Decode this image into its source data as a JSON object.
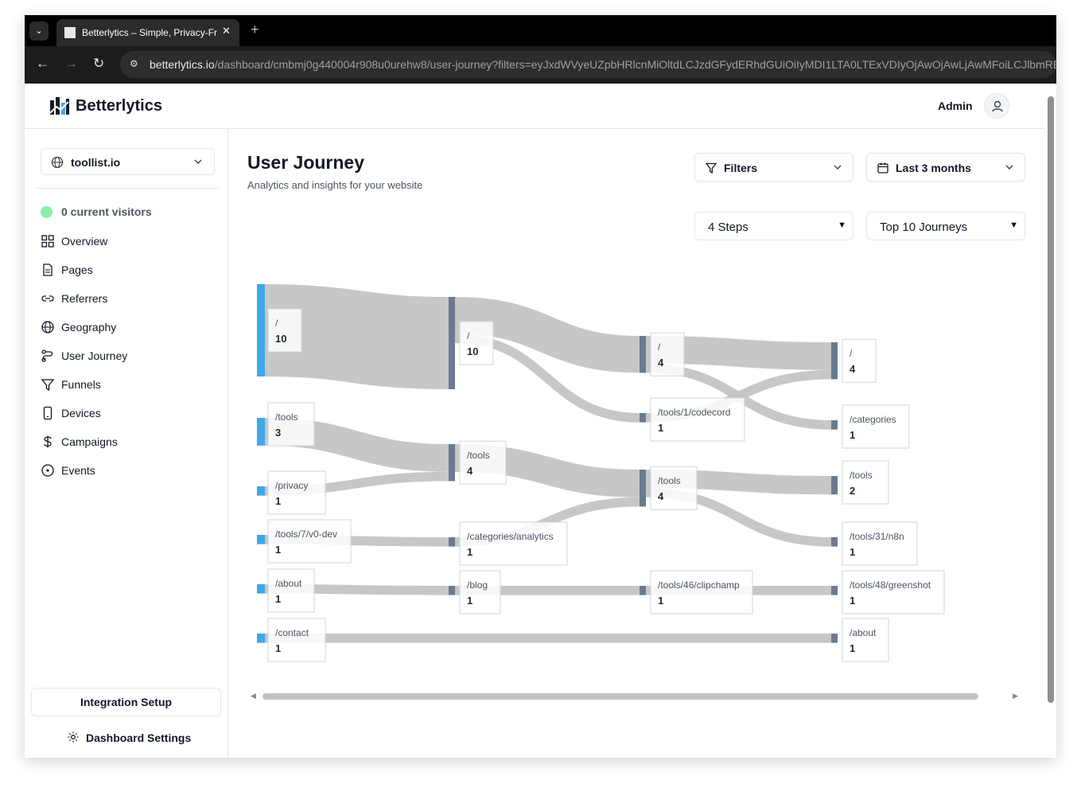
{
  "browser": {
    "tab_title": "Betterlytics – Simple, Privacy-Fr",
    "url_host": "betterlytics.io",
    "url_path": "/dashboard/cmbmj0g440004r908u0urehw8/user-journey?filters=eyJxdWVyeUZpbHRlcnMiOltdLCJzdGFydERhdGUiOiIyMDI1LTA0LTExVDIyOjAwOjAwLjAwMFoiLCJlbmREYXR"
  },
  "header": {
    "brand": "Betterlytics",
    "admin_label": "Admin"
  },
  "sidebar": {
    "site": "toollist.io",
    "current_visitors": "0 current visitors",
    "items": [
      {
        "label": "Overview",
        "icon": "grid-icon"
      },
      {
        "label": "Pages",
        "icon": "document-icon"
      },
      {
        "label": "Referrers",
        "icon": "link-icon"
      },
      {
        "label": "Geography",
        "icon": "globe-icon"
      },
      {
        "label": "User Journey",
        "icon": "route-icon"
      },
      {
        "label": "Funnels",
        "icon": "funnel-icon"
      },
      {
        "label": "Devices",
        "icon": "smartphone-icon"
      },
      {
        "label": "Campaigns",
        "icon": "dollar-icon"
      },
      {
        "label": "Events",
        "icon": "target-icon"
      }
    ],
    "integration_setup": "Integration Setup",
    "dashboard_settings": "Dashboard Settings"
  },
  "main": {
    "title": "User Journey",
    "subtitle": "Analytics and insights for your website",
    "filters_label": "Filters",
    "date_range": "Last 3 months",
    "steps": "4 Steps",
    "journeys": "Top 10 Journeys"
  },
  "colors": {
    "accent": "#3ea8e5",
    "node": "#6b7a90",
    "link": "#c4c4c4"
  },
  "chart_data": {
    "type": "sankey",
    "nodes": [
      {
        "id": "s0_home",
        "step": 0,
        "name": "/",
        "value": 10
      },
      {
        "id": "s0_tools",
        "step": 0,
        "name": "/tools",
        "value": 3
      },
      {
        "id": "s0_privacy",
        "step": 0,
        "name": "/privacy",
        "value": 1
      },
      {
        "id": "s0_v0dev",
        "step": 0,
        "name": "/tools/7/v0-dev",
        "value": 1
      },
      {
        "id": "s0_about",
        "step": 0,
        "name": "/about",
        "value": 1
      },
      {
        "id": "s0_contact",
        "step": 0,
        "name": "/contact",
        "value": 1
      },
      {
        "id": "s1_home",
        "step": 1,
        "name": "/",
        "value": 10
      },
      {
        "id": "s1_tools",
        "step": 1,
        "name": "/tools",
        "value": 4
      },
      {
        "id": "s1_catanalytics",
        "step": 1,
        "name": "/categories/analytics",
        "value": 1
      },
      {
        "id": "s1_blog",
        "step": 1,
        "name": "/blog",
        "value": 1
      },
      {
        "id": "s2_home",
        "step": 2,
        "name": "/",
        "value": 4
      },
      {
        "id": "s2_codecord",
        "step": 2,
        "name": "/tools/1/codecord",
        "value": 1
      },
      {
        "id": "s2_tools",
        "step": 2,
        "name": "/tools",
        "value": 4
      },
      {
        "id": "s2_clipchamp",
        "step": 2,
        "name": "/tools/46/clipchamp",
        "value": 1
      },
      {
        "id": "s3_home",
        "step": 3,
        "name": "/",
        "value": 4
      },
      {
        "id": "s3_categories",
        "step": 3,
        "name": "/categories",
        "value": 1
      },
      {
        "id": "s3_tools",
        "step": 3,
        "name": "/tools",
        "value": 2
      },
      {
        "id": "s3_n8n",
        "step": 3,
        "name": "/tools/31/n8n",
        "value": 1
      },
      {
        "id": "s3_greenshot",
        "step": 3,
        "name": "/tools/48/greenshot",
        "value": 1
      },
      {
        "id": "s3_about",
        "step": 3,
        "name": "/about",
        "value": 1
      }
    ],
    "links": [
      {
        "source": "s0_home",
        "target": "s1_home",
        "value": 10
      },
      {
        "source": "s0_tools",
        "target": "s1_tools",
        "value": 3
      },
      {
        "source": "s0_privacy",
        "target": "s1_tools",
        "value": 1
      },
      {
        "source": "s0_v0dev",
        "target": "s1_catanalytics",
        "value": 1
      },
      {
        "source": "s0_about",
        "target": "s1_blog",
        "value": 1
      },
      {
        "source": "s1_home",
        "target": "s2_home",
        "value": 4
      },
      {
        "source": "s1_home",
        "target": "s2_codecord",
        "value": 1
      },
      {
        "source": "s1_tools",
        "target": "s2_tools",
        "value": 3
      },
      {
        "source": "s1_catanalytics",
        "target": "s2_tools",
        "value": 1
      },
      {
        "source": "s1_blog",
        "target": "s2_clipchamp",
        "value": 1
      },
      {
        "source": "s2_home",
        "target": "s3_home",
        "value": 3
      },
      {
        "source": "s2_home",
        "target": "s3_categories",
        "value": 1
      },
      {
        "source": "s2_codecord",
        "target": "s3_home",
        "value": 1
      },
      {
        "source": "s2_tools",
        "target": "s3_tools",
        "value": 2
      },
      {
        "source": "s2_tools",
        "target": "s3_n8n",
        "value": 1
      },
      {
        "source": "s2_clipchamp",
        "target": "s3_greenshot",
        "value": 1
      },
      {
        "source": "s0_contact",
        "target": "s3_about",
        "value": 1
      }
    ]
  }
}
